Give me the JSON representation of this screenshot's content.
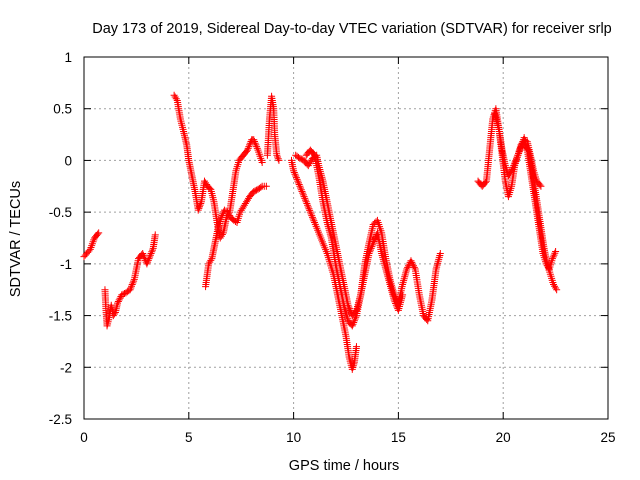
{
  "chart_data": {
    "type": "scatter",
    "title": "Day 173 of 2019, Sidereal Day-to-day VTEC variation (SDTVAR) for receiver srlp",
    "xlabel": "GPS time / hours",
    "ylabel": "SDTVAR / TECUs",
    "xlim": [
      0,
      25
    ],
    "ylim": [
      -2.5,
      1
    ],
    "xticks": [
      0,
      5,
      10,
      15,
      20,
      25
    ],
    "yticks": [
      -2.5,
      -2,
      -1.5,
      -1,
      -0.5,
      0,
      0.5,
      1
    ],
    "xtick_labels": [
      "0",
      "5",
      "10",
      "15",
      "20",
      "25"
    ],
    "ytick_labels": [
      "-2.5",
      "-2",
      "-1.5",
      "-1",
      "-0.5",
      "0",
      "0.5",
      "1"
    ],
    "grid": true,
    "marker": "plus",
    "color": "#ff0000",
    "segments": [
      [
        [
          0.0,
          -0.93
        ],
        [
          0.3,
          -0.86
        ],
        [
          0.5,
          -0.75
        ],
        [
          0.7,
          -0.7
        ]
      ],
      [
        [
          1.0,
          -1.25
        ],
        [
          1.05,
          -1.45
        ],
        [
          1.1,
          -1.6
        ],
        [
          1.2,
          -1.52
        ],
        [
          1.3,
          -1.4
        ],
        [
          1.4,
          -1.5
        ],
        [
          1.5,
          -1.47
        ],
        [
          1.6,
          -1.38
        ],
        [
          1.8,
          -1.3
        ],
        [
          2.0,
          -1.28
        ],
        [
          2.2,
          -1.25
        ],
        [
          2.4,
          -1.15
        ],
        [
          2.5,
          -1.05
        ],
        [
          2.6,
          -0.95
        ],
        [
          2.8,
          -0.9
        ],
        [
          3.0,
          -1.0
        ],
        [
          3.1,
          -0.95
        ],
        [
          3.3,
          -0.85
        ],
        [
          3.4,
          -0.72
        ]
      ],
      [
        [
          4.3,
          0.63
        ],
        [
          4.45,
          0.58
        ],
        [
          4.6,
          0.4
        ],
        [
          4.75,
          0.28
        ],
        [
          4.9,
          0.15
        ],
        [
          5.0,
          0.0
        ],
        [
          5.15,
          -0.15
        ],
        [
          5.3,
          -0.3
        ],
        [
          5.45,
          -0.48
        ],
        [
          5.6,
          -0.4
        ],
        [
          5.75,
          -0.2
        ],
        [
          5.9,
          -0.25
        ],
        [
          6.05,
          -0.28
        ],
        [
          6.2,
          -0.4
        ],
        [
          6.35,
          -0.6
        ],
        [
          6.5,
          -0.75
        ],
        [
          6.65,
          -0.7
        ],
        [
          6.8,
          -0.55
        ],
        [
          6.95,
          -0.5
        ],
        [
          7.1,
          -0.3
        ],
        [
          7.25,
          -0.1
        ],
        [
          7.4,
          0.0
        ],
        [
          7.6,
          0.05
        ],
        [
          7.8,
          0.1
        ],
        [
          8.0,
          0.2
        ],
        [
          8.1,
          0.2
        ],
        [
          8.3,
          0.1
        ],
        [
          8.5,
          -0.02
        ]
      ],
      [
        [
          5.8,
          -1.22
        ],
        [
          5.95,
          -1.0
        ],
        [
          6.1,
          -0.95
        ],
        [
          6.25,
          -0.8
        ],
        [
          6.4,
          -0.65
        ],
        [
          6.55,
          -0.55
        ],
        [
          6.7,
          -0.48
        ],
        [
          6.85,
          -0.5
        ],
        [
          7.0,
          -0.55
        ],
        [
          7.15,
          -0.58
        ],
        [
          7.3,
          -0.6
        ],
        [
          7.45,
          -0.5
        ],
        [
          7.6,
          -0.45
        ],
        [
          7.75,
          -0.4
        ],
        [
          7.9,
          -0.35
        ],
        [
          8.1,
          -0.3
        ],
        [
          8.3,
          -0.28
        ],
        [
          8.5,
          -0.25
        ],
        [
          8.7,
          -0.25
        ]
      ],
      [
        [
          8.75,
          0.05
        ],
        [
          8.85,
          0.4
        ],
        [
          8.95,
          0.62
        ],
        [
          9.05,
          0.5
        ],
        [
          9.1,
          0.25
        ],
        [
          9.2,
          0.05
        ],
        [
          9.3,
          0.0
        ]
      ],
      [
        [
          9.9,
          0.0
        ],
        [
          10.0,
          -0.1
        ],
        [
          10.2,
          -0.2
        ],
        [
          10.4,
          -0.3
        ],
        [
          10.6,
          -0.4
        ],
        [
          10.8,
          -0.5
        ],
        [
          11.0,
          -0.6
        ],
        [
          11.3,
          -0.75
        ],
        [
          11.6,
          -0.9
        ],
        [
          11.9,
          -1.1
        ],
        [
          12.1,
          -1.3
        ],
        [
          12.3,
          -1.5
        ],
        [
          12.5,
          -1.7
        ],
        [
          12.65,
          -1.9
        ],
        [
          12.8,
          -2.02
        ],
        [
          12.9,
          -1.95
        ],
        [
          13.0,
          -1.8
        ]
      ],
      [
        [
          10.1,
          0.05
        ],
        [
          10.3,
          0.02
        ],
        [
          10.5,
          0.0
        ],
        [
          10.7,
          -0.05
        ],
        [
          10.9,
          0.02
        ],
        [
          11.1,
          0.05
        ],
        [
          11.2,
          -0.05
        ],
        [
          11.4,
          -0.2
        ],
        [
          11.6,
          -0.4
        ],
        [
          11.8,
          -0.6
        ],
        [
          12.0,
          -0.8
        ],
        [
          12.2,
          -1.0
        ],
        [
          12.4,
          -1.2
        ],
        [
          12.6,
          -1.4
        ],
        [
          12.8,
          -1.5
        ],
        [
          13.0,
          -1.45
        ],
        [
          13.2,
          -1.3
        ],
        [
          13.4,
          -1.1
        ],
        [
          13.6,
          -0.9
        ],
        [
          13.8,
          -0.8
        ],
        [
          14.0,
          -0.7
        ],
        [
          14.2,
          -0.9
        ],
        [
          14.4,
          -1.05
        ],
        [
          14.6,
          -1.2
        ],
        [
          14.8,
          -1.35
        ],
        [
          15.0,
          -1.45
        ],
        [
          15.2,
          -1.3
        ]
      ],
      [
        [
          10.6,
          0.05
        ],
        [
          10.8,
          0.1
        ],
        [
          11.0,
          0.05
        ],
        [
          11.2,
          -0.15
        ],
        [
          11.4,
          -0.4
        ],
        [
          11.6,
          -0.6
        ],
        [
          11.8,
          -0.75
        ],
        [
          12.0,
          -1.0
        ],
        [
          12.2,
          -1.2
        ],
        [
          12.4,
          -1.4
        ],
        [
          12.6,
          -1.55
        ],
        [
          12.8,
          -1.6
        ],
        [
          13.0,
          -1.5
        ],
        [
          13.2,
          -1.3
        ],
        [
          13.4,
          -1.0
        ],
        [
          13.6,
          -0.8
        ],
        [
          13.8,
          -0.62
        ],
        [
          14.0,
          -0.58
        ],
        [
          14.2,
          -0.7
        ],
        [
          14.4,
          -0.95
        ],
        [
          14.6,
          -1.15
        ],
        [
          14.8,
          -1.3
        ],
        [
          15.0,
          -1.38
        ],
        [
          15.2,
          -1.2
        ],
        [
          15.4,
          -1.05
        ],
        [
          15.6,
          -0.97
        ],
        [
          15.8,
          -1.05
        ],
        [
          16.0,
          -1.3
        ],
        [
          16.2,
          -1.5
        ],
        [
          16.4,
          -1.55
        ],
        [
          16.6,
          -1.35
        ],
        [
          16.8,
          -1.05
        ],
        [
          17.0,
          -0.9
        ]
      ],
      [
        [
          18.8,
          -0.2
        ],
        [
          19.0,
          -0.25
        ],
        [
          19.2,
          -0.2
        ],
        [
          19.35,
          0.1
        ],
        [
          19.5,
          0.4
        ],
        [
          19.65,
          0.5
        ],
        [
          19.8,
          0.3
        ],
        [
          19.95,
          0.05
        ],
        [
          20.1,
          -0.2
        ],
        [
          20.25,
          -0.35
        ],
        [
          20.4,
          -0.25
        ],
        [
          20.55,
          -0.05
        ],
        [
          20.7,
          0.05
        ],
        [
          20.85,
          0.15
        ],
        [
          21.0,
          0.2
        ],
        [
          21.15,
          0.18
        ],
        [
          21.3,
          0.05
        ],
        [
          21.45,
          -0.1
        ],
        [
          21.6,
          -0.2
        ],
        [
          21.8,
          -0.25
        ]
      ],
      [
        [
          19.6,
          0.45
        ],
        [
          19.8,
          0.3
        ],
        [
          19.95,
          0.1
        ],
        [
          20.1,
          -0.05
        ],
        [
          20.25,
          -0.15
        ],
        [
          20.4,
          -0.1
        ],
        [
          20.6,
          0.0
        ],
        [
          20.8,
          0.1
        ],
        [
          21.0,
          0.22
        ],
        [
          21.15,
          0.1
        ],
        [
          21.3,
          -0.1
        ],
        [
          21.45,
          -0.3
        ],
        [
          21.6,
          -0.5
        ],
        [
          21.75,
          -0.7
        ],
        [
          21.9,
          -0.9
        ],
        [
          22.05,
          -1.0
        ],
        [
          22.2,
          -1.05
        ],
        [
          22.35,
          -0.95
        ],
        [
          22.5,
          -0.88
        ]
      ],
      [
        [
          21.0,
          0.15
        ],
        [
          21.2,
          0.1
        ],
        [
          21.35,
          -0.05
        ],
        [
          21.5,
          -0.25
        ],
        [
          21.65,
          -0.45
        ],
        [
          21.8,
          -0.65
        ],
        [
          21.95,
          -0.85
        ],
        [
          22.1,
          -1.0
        ],
        [
          22.25,
          -1.1
        ],
        [
          22.4,
          -1.2
        ],
        [
          22.55,
          -1.25
        ]
      ]
    ]
  }
}
